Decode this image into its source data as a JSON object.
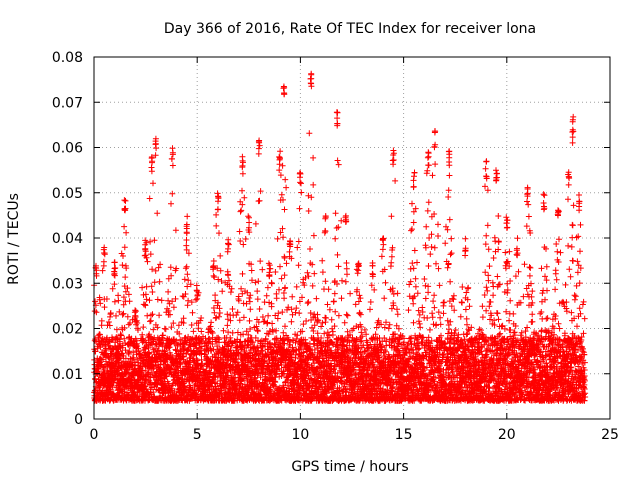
{
  "chart_data": {
    "type": "scatter",
    "title": "Day 366 of 2016, Rate Of TEC Index for receiver lona",
    "xlabel": "GPS time / hours",
    "ylabel": "ROTI / TECUs",
    "xlim": [
      0,
      25
    ],
    "ylim": [
      0,
      0.08
    ],
    "x_ticks": [
      0,
      5,
      10,
      15,
      20,
      25
    ],
    "x_tick_labels": [
      "0",
      "5",
      "10",
      "15",
      "20",
      "25"
    ],
    "y_ticks": [
      0,
      0.01,
      0.02,
      0.03,
      0.04,
      0.05,
      0.06,
      0.07,
      0.08
    ],
    "y_tick_labels": [
      "0",
      "0.01",
      "0.02",
      "0.03",
      "0.04",
      "0.05",
      "0.06",
      "0.07",
      "0.08"
    ],
    "grid": true,
    "marker": "plus",
    "marker_color": "#ff0000",
    "grid_color": "#a0a0a0",
    "series": [
      {
        "name": "ROTI",
        "time_range_hours": [
          0,
          23.8
        ],
        "baseline_values": [
          0.004,
          0.018
        ],
        "burst_peaks": [
          [
            0.1,
            0.035
          ],
          [
            0.5,
            0.038
          ],
          [
            1.0,
            0.035
          ],
          [
            1.5,
            0.05
          ],
          [
            2.0,
            0.025
          ],
          [
            2.5,
            0.04
          ],
          [
            2.8,
            0.058
          ],
          [
            3.0,
            0.062
          ],
          [
            3.8,
            0.06
          ],
          [
            4.5,
            0.045
          ],
          [
            5.0,
            0.03
          ],
          [
            5.8,
            0.035
          ],
          [
            6.0,
            0.05
          ],
          [
            6.5,
            0.04
          ],
          [
            7.2,
            0.058
          ],
          [
            7.5,
            0.045
          ],
          [
            8.0,
            0.062
          ],
          [
            8.5,
            0.035
          ],
          [
            9.0,
            0.06
          ],
          [
            9.2,
            0.074
          ],
          [
            9.5,
            0.04
          ],
          [
            10.0,
            0.055
          ],
          [
            10.5,
            0.077
          ],
          [
            11.2,
            0.045
          ],
          [
            11.8,
            0.069
          ],
          [
            12.2,
            0.045
          ],
          [
            12.8,
            0.035
          ],
          [
            13.5,
            0.035
          ],
          [
            14.0,
            0.04
          ],
          [
            14.5,
            0.06
          ],
          [
            15.5,
            0.055
          ],
          [
            16.2,
            0.06
          ],
          [
            16.5,
            0.064
          ],
          [
            17.2,
            0.06
          ],
          [
            18.0,
            0.04
          ],
          [
            19.0,
            0.057
          ],
          [
            19.5,
            0.055
          ],
          [
            20.0,
            0.045
          ],
          [
            20.5,
            0.04
          ],
          [
            21.0,
            0.052
          ],
          [
            21.8,
            0.05
          ],
          [
            22.5,
            0.048
          ],
          [
            23.0,
            0.055
          ],
          [
            23.2,
            0.067
          ],
          [
            23.5,
            0.05
          ]
        ]
      }
    ]
  }
}
